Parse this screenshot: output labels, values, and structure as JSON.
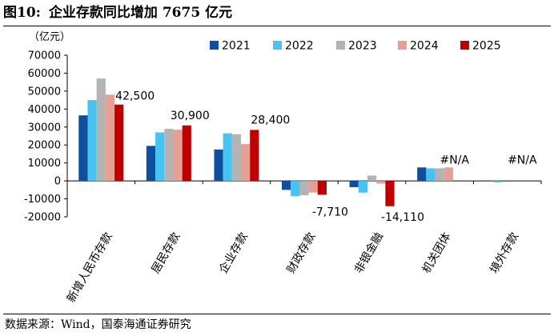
{
  "header": {
    "figure_label": "图10:",
    "title": "企业存款同比增加 7675 亿元"
  },
  "footer": {
    "source": "数据来源：Wind，国泰海通证券研究"
  },
  "chart_data": {
    "type": "bar",
    "title": "",
    "ylabel": "（亿元）",
    "xlabel": "",
    "ylim": [
      -20000,
      70000
    ],
    "yticks": [
      -20000,
      -10000,
      0,
      10000,
      20000,
      30000,
      40000,
      50000,
      60000,
      70000
    ],
    "legend_position": "top-right",
    "categories": [
      "新增人民币存款",
      "居民存款",
      "企业存款",
      "财政存款",
      "非银金融",
      "机关团体",
      "境外存款"
    ],
    "series": [
      {
        "name": "2021",
        "color": "#0e4f9e",
        "values": [
          36500,
          19500,
          17500,
          -5000,
          -3500,
          7500,
          0
        ]
      },
      {
        "name": "2022",
        "color": "#47c3f1",
        "values": [
          45000,
          27000,
          26500,
          -8500,
          -6500,
          7000,
          -800
        ]
      },
      {
        "name": "2023",
        "color": "#b3b3b3",
        "values": [
          57000,
          29000,
          26000,
          -8000,
          3000,
          7000,
          0
        ]
      },
      {
        "name": "2024",
        "color": "#e6a093",
        "values": [
          48000,
          28500,
          20500,
          -6500,
          -1500,
          7500,
          0
        ]
      },
      {
        "name": "2025",
        "color": "#c00000",
        "values": [
          42500,
          30900,
          28400,
          -7710,
          -14110,
          null,
          null
        ]
      }
    ],
    "data_labels": [
      {
        "category": "新增人民币存款",
        "series": "2025",
        "text": "42,500"
      },
      {
        "category": "居民存款",
        "series": "2025",
        "text": "30,900"
      },
      {
        "category": "企业存款",
        "series": "2025",
        "text": "28,400"
      },
      {
        "category": "财政存款",
        "series": "2025",
        "text": "-7,710"
      },
      {
        "category": "非银金融",
        "series": "2025",
        "text": "-14,110"
      },
      {
        "category": "机关团体",
        "series": "2025",
        "text": "#N/A"
      },
      {
        "category": "境外存款",
        "series": "2025",
        "text": "#N/A"
      }
    ]
  }
}
